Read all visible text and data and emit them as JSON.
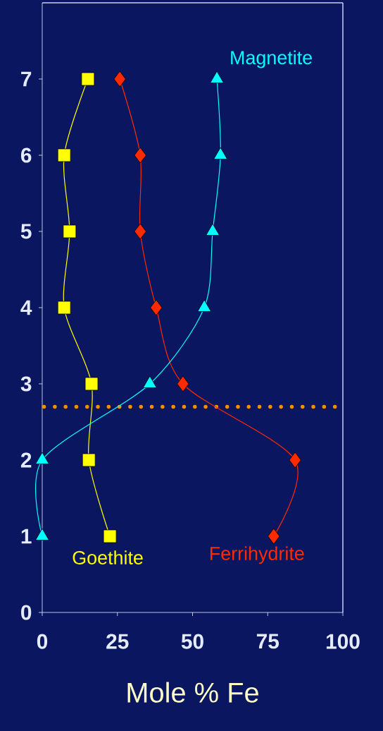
{
  "chart_data": {
    "type": "line",
    "xlabel": "Mole % Fe",
    "xlim": [
      0,
      100
    ],
    "ylim": [
      0,
      8
    ],
    "xticks": [
      0,
      25,
      50,
      75,
      100
    ],
    "yticks": [
      0,
      1,
      2,
      3,
      4,
      5,
      6,
      7
    ],
    "grid": false,
    "legend": false,
    "series": [
      {
        "name": "Goethite",
        "color": "#ffff00",
        "marker": "square",
        "x": [
          22.5,
          15.5,
          16.4,
          7.3,
          9.1,
          7.3,
          15.2
        ],
        "values": [
          1,
          2,
          3,
          4,
          5,
          6,
          7
        ]
      },
      {
        "name": "Ferrihydrite",
        "color": "#ff2a00",
        "marker": "diamond",
        "x": [
          77,
          84.1,
          46.8,
          37.9,
          32.6,
          32.6,
          25.8
        ],
        "values": [
          1,
          2,
          3,
          4,
          5,
          6,
          7
        ]
      },
      {
        "name": "Magnetite",
        "color": "#00ffff",
        "marker": "triangle",
        "x": [
          0,
          0,
          35.8,
          53.9,
          56.7,
          59.3,
          58.1
        ],
        "values": [
          1,
          2,
          3,
          4,
          5,
          6,
          7
        ]
      }
    ],
    "ref_lines": [
      {
        "axis": "y",
        "value": 2.7,
        "color": "#ff8c00",
        "line_style": "dotted"
      }
    ]
  }
}
